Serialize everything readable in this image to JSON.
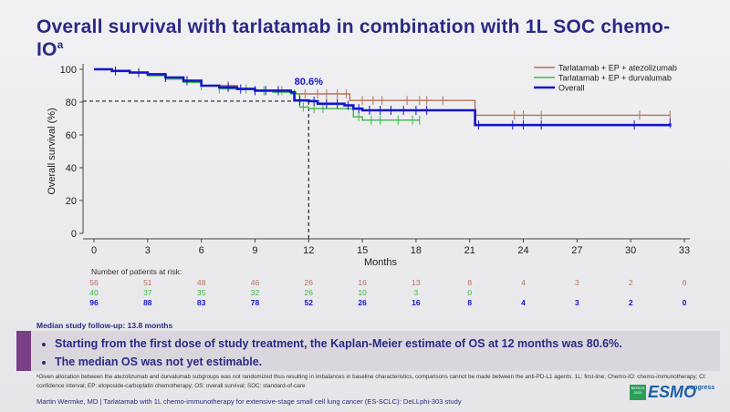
{
  "slide": {
    "title": "Overall survival with tarlatamab in combination with 1L SOC chemo-IO",
    "title_sup": "a",
    "risk_heading": "Number of patients at risk:",
    "median_followup": "Median study follow-up: 13.8 months",
    "bullets": [
      "Starting from the first dose of study treatment, the Kaplan-Meier estimate of OS at 12 months was 80.6%.",
      "The median OS was not yet estimable."
    ],
    "footnote": "ᵃGiven allocation between the atezolizumab and durvalumab subgroups was not randomized thus resulting in imbalances in baseline characteristics, comparisons cannot be made between the anti-PD-L1 agents. 1L: first-line; Chemo-IO: chemo-immunotherapy; CI: confidence interval; EP: etoposide-carboplatin chemotherapy; OS: overall survival; SOC: standard-of-care",
    "byline": "Martin Wermke, MD | Tarlatamab with 1L chemo-immunotherapy for extensive-stage small cell lung cancer (ES-SCLC): DeLLphi-303 study",
    "logo": {
      "badge": "BERLIN 2025",
      "brand": "ESMO",
      "suffix": "congress"
    }
  },
  "chart_data": {
    "type": "line",
    "title": "",
    "xlabel": "Months",
    "ylabel": "Overall survival (%)",
    "xlim": [
      0,
      33
    ],
    "ylim": [
      0,
      100
    ],
    "xticks": [
      0,
      3,
      6,
      9,
      12,
      15,
      18,
      21,
      24,
      27,
      30,
      33
    ],
    "yticks": [
      0,
      20,
      40,
      60,
      80,
      100
    ],
    "annotation": {
      "text": "80.6%",
      "x": 12,
      "y": 80.6
    },
    "legend_position": "top-right",
    "series": [
      {
        "name": "Tarlatamab + EP + atezolizumab",
        "color": "#b5725a",
        "x": [
          0,
          1,
          2,
          3,
          4,
          5,
          6,
          8,
          9,
          10,
          11,
          11.3,
          12,
          14,
          14.3,
          15.2,
          21.3,
          32.2
        ],
        "y": [
          100,
          99,
          98,
          97,
          95,
          93,
          90,
          88,
          87,
          87,
          86,
          85,
          85,
          85,
          81,
          81,
          72,
          72
        ],
        "censor_x": [
          2.5,
          7.5,
          9,
          10.5,
          11.8,
          12.5,
          13,
          13.6,
          14.1,
          15,
          15.6,
          16.1,
          17.5,
          18.2,
          18.6,
          19.5,
          23.5,
          24,
          25,
          30.5,
          32.2
        ]
      },
      {
        "name": "Tarlatamab + EP + durvalumab",
        "color": "#3cb84a",
        "x": [
          0,
          1,
          2,
          3,
          4,
          5,
          6,
          7,
          8,
          9,
          10,
          11,
          11.5,
          12,
          14,
          14.5,
          15,
          18.2
        ],
        "y": [
          100,
          99,
          98,
          96,
          94,
          92,
          90,
          88,
          88,
          87,
          86,
          85,
          77,
          76,
          76,
          71,
          69,
          69
        ],
        "censor_x": [
          6,
          7,
          8.5,
          9.5,
          11.2,
          11.7,
          12.3,
          12.8,
          14.8,
          15.5,
          16,
          17,
          17.8,
          18.2
        ]
      },
      {
        "name": "Overall",
        "color": "#1515c8",
        "x": [
          0,
          1,
          2,
          3,
          4,
          5,
          6,
          7,
          8,
          9,
          10,
          11,
          11.2,
          12,
          12.5,
          13,
          14,
          14.5,
          15,
          18.5,
          21.3,
          32.2
        ],
        "y": [
          100,
          99,
          98,
          97,
          95,
          93,
          90,
          89,
          88,
          87,
          87,
          86,
          81,
          80.6,
          79,
          79,
          78,
          76,
          75,
          75,
          66,
          67
        ],
        "censor_x": [
          1.2,
          2.5,
          4,
          5.2,
          7.5,
          8.2,
          9,
          9.6,
          10.3,
          11.5,
          12.3,
          13,
          13.6,
          14.2,
          14.8,
          15.4,
          16,
          16.6,
          17.3,
          18,
          18.6,
          21.5,
          23.4,
          24,
          25,
          30.2,
          32.2
        ]
      }
    ],
    "at_risk": {
      "times": [
        0,
        3,
        6,
        9,
        12,
        15,
        18,
        21,
        24,
        27,
        30,
        33
      ],
      "rows": [
        {
          "name": "Tarlatamab + EP + atezolizumab",
          "color": "#b5725a",
          "values": [
            "56",
            "51",
            "48",
            "46",
            "26",
            "16",
            "13",
            "8",
            "4",
            "3",
            "2",
            "0"
          ]
        },
        {
          "name": "Tarlatamab + EP + durvalumab",
          "color": "#3cb84a",
          "values": [
            "40",
            "37",
            "35",
            "32",
            "26",
            "10",
            "3",
            "0",
            "",
            "",
            "",
            ""
          ]
        },
        {
          "name": "Overall",
          "color": "#1515c8",
          "values": [
            "96",
            "88",
            "83",
            "78",
            "52",
            "26",
            "16",
            "8",
            "4",
            "3",
            "2",
            "0"
          ]
        }
      ]
    }
  }
}
